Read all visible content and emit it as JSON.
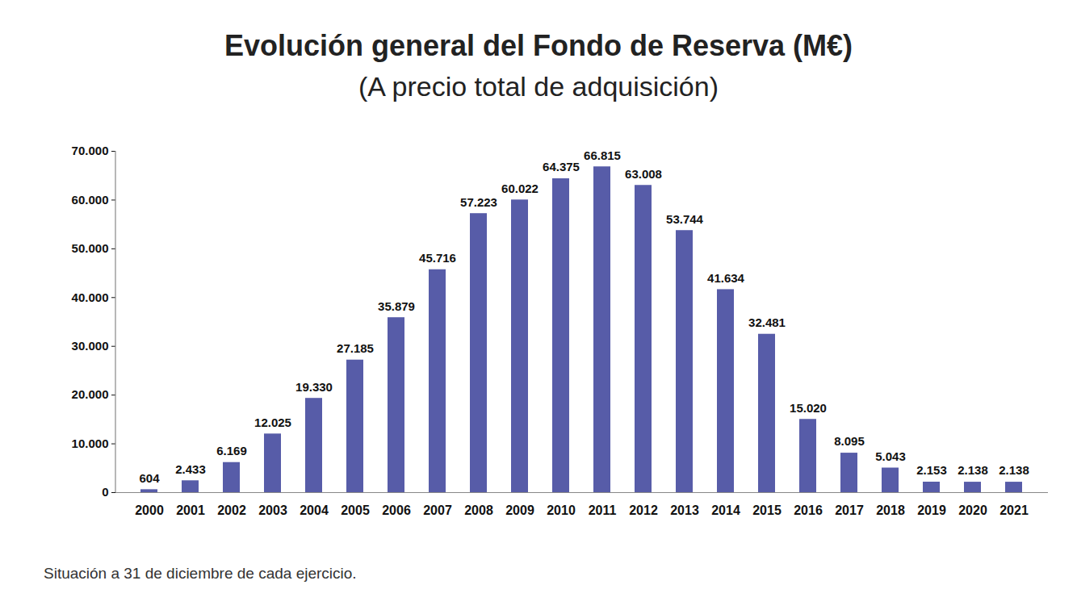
{
  "chart_data": {
    "type": "bar",
    "title": "Evolución general del Fondo de Reserva (M€)",
    "subtitle": "(A precio total de adquisición)",
    "caption": "Situación a 31 de diciembre de cada ejercicio.",
    "categories": [
      "2000",
      "2001",
      "2002",
      "2003",
      "2004",
      "2005",
      "2006",
      "2007",
      "2008",
      "2009",
      "2010",
      "2011",
      "2012",
      "2013",
      "2014",
      "2015",
      "2016",
      "2017",
      "2018",
      "2019",
      "2020",
      "2021"
    ],
    "values": [
      604,
      2433,
      6169,
      12025,
      19330,
      27185,
      35879,
      45716,
      57223,
      60022,
      64375,
      66815,
      63008,
      53744,
      41634,
      32481,
      15020,
      8095,
      5043,
      2153,
      2138,
      2138
    ],
    "value_labels": [
      "604",
      "2.433",
      "6.169",
      "12.025",
      "19.330",
      "27.185",
      "35.879",
      "45.716",
      "57.223",
      "60.022",
      "64.375",
      "66.815",
      "63.008",
      "53.744",
      "41.634",
      "32.481",
      "15.020",
      "8.095",
      "5.043",
      "2.153",
      "2.138",
      "2.138"
    ],
    "color": "#575ca8",
    "ylim": [
      0,
      70000
    ],
    "yticks": [
      0,
      {
        "value": 10000,
        "label": "10.000"
      },
      {
        "value": 20000,
        "label": "20.000"
      },
      {
        "value": 30000,
        "label": "30.000"
      },
      {
        "value": 40000,
        "label": "40.000"
      },
      {
        "value": 50000,
        "label": "50.000"
      },
      {
        "value": 60000,
        "label": "60.000"
      },
      {
        "value": 70000,
        "label": "70.000"
      }
    ],
    "grid": false,
    "data_labels": true
  }
}
